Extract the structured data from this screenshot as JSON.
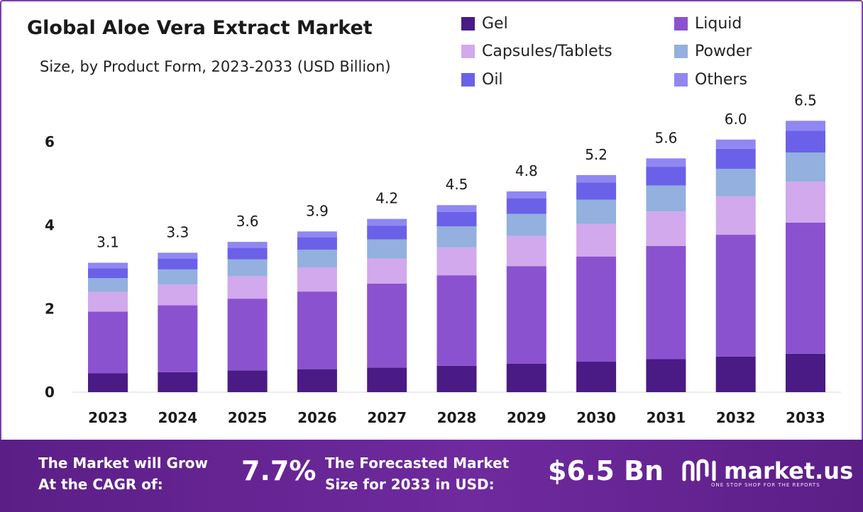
{
  "title": "Global Aloe Vera Extract Market",
  "subtitle": "Size, by Product Form, 2023-2033 (USD Billion)",
  "chart_data": {
    "type": "bar",
    "stacked": true,
    "categories": [
      "2023",
      "2024",
      "2025",
      "2026",
      "2027",
      "2028",
      "2029",
      "2030",
      "2031",
      "2032",
      "2033"
    ],
    "series": [
      {
        "name": "Gel",
        "color": "#4a1a85",
        "values": [
          0.45,
          0.48,
          0.52,
          0.55,
          0.59,
          0.63,
          0.68,
          0.73,
          0.79,
          0.85,
          0.92
        ]
      },
      {
        "name": "Liquid",
        "color": "#8b52cf",
        "values": [
          1.48,
          1.6,
          1.72,
          1.86,
          2.01,
          2.17,
          2.34,
          2.52,
          2.71,
          2.92,
          3.14
        ]
      },
      {
        "name": "Capsules/Tablets",
        "color": "#d1a9ec",
        "values": [
          0.47,
          0.5,
          0.54,
          0.58,
          0.6,
          0.67,
          0.72,
          0.78,
          0.83,
          0.92,
          0.98
        ]
      },
      {
        "name": "Powder",
        "color": "#93b0de",
        "values": [
          0.33,
          0.36,
          0.4,
          0.42,
          0.46,
          0.5,
          0.53,
          0.58,
          0.62,
          0.66,
          0.7
        ]
      },
      {
        "name": "Oil",
        "color": "#6b61e8",
        "values": [
          0.24,
          0.26,
          0.28,
          0.3,
          0.33,
          0.35,
          0.38,
          0.41,
          0.45,
          0.48,
          0.52
        ]
      },
      {
        "name": "Others",
        "color": "#9087f1",
        "values": [
          0.13,
          0.14,
          0.14,
          0.14,
          0.16,
          0.16,
          0.16,
          0.18,
          0.2,
          0.22,
          0.24
        ]
      }
    ],
    "totals": [
      "3.1",
      "3.3",
      "3.6",
      "3.9",
      "4.2",
      "4.5",
      "4.8",
      "5.2",
      "5.6",
      "6.0",
      "6.5"
    ],
    "yticks": [
      "0",
      "2",
      "4",
      "6"
    ],
    "ylim": [
      0,
      7.1
    ],
    "grid": false,
    "legend_position": "top-right"
  },
  "footer": {
    "cagr_label_line1": "The Market will Grow",
    "cagr_label_line2": "At the CAGR of:",
    "cagr_value": "7.7%",
    "forecast_label_line1": "The Forecasted Market",
    "forecast_label_line2": "Size for 2033 in USD:",
    "forecast_value": "$6.5 Bn",
    "brand": "market.us",
    "brand_tagline": "ONE STOP SHOP FOR THE REPORTS"
  }
}
